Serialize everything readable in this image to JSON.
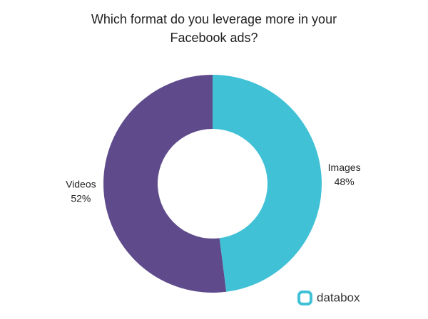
{
  "chart_data": {
    "type": "donut",
    "title": "Which format do you leverage more in your Facebook ads?",
    "categories": [
      "Images",
      "Videos"
    ],
    "values": [
      48,
      52
    ],
    "value_labels": [
      "48%",
      "52%"
    ],
    "colors": [
      "#40c1d6",
      "#5f4b8b"
    ]
  },
  "branding": "databox"
}
